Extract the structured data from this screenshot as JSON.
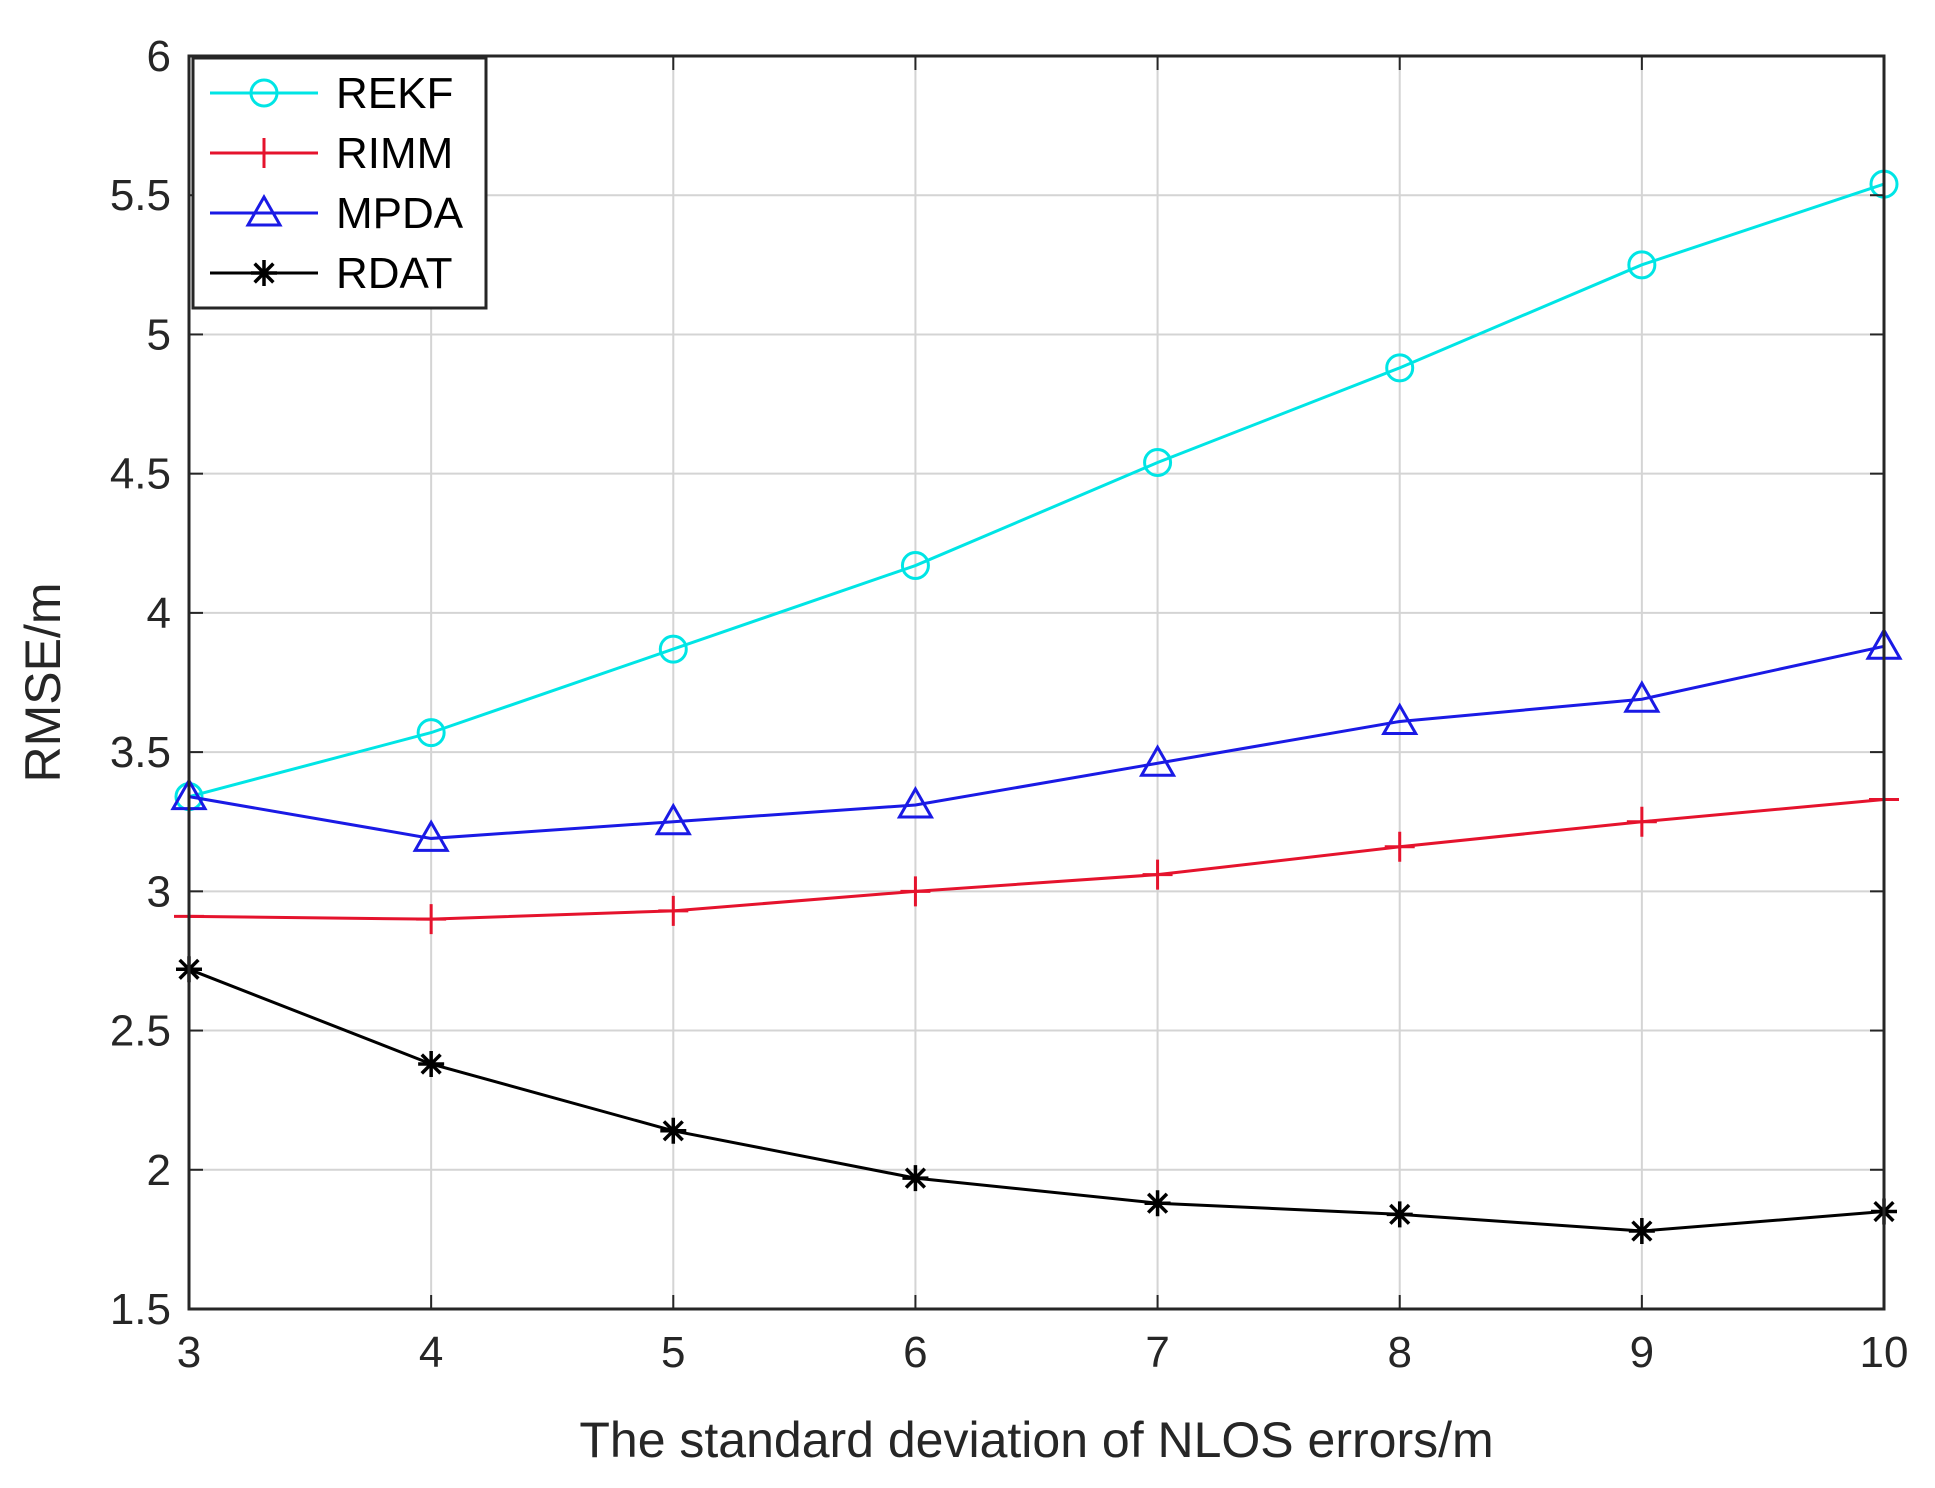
{
  "chart_data": {
    "type": "line",
    "title": "",
    "xlabel": "The standard deviation of NLOS errors/m",
    "ylabel": "RMSE/m",
    "xlim": [
      3,
      10
    ],
    "ylim": [
      1.5,
      6
    ],
    "grid": true,
    "legend_position": "top-left",
    "xticks": [
      3,
      4,
      5,
      6,
      7,
      8,
      9,
      10
    ],
    "yticks": [
      1.5,
      2,
      2.5,
      3,
      3.5,
      4,
      4.5,
      5,
      5.5,
      6
    ],
    "xtick_labels": [
      "3",
      "4",
      "5",
      "6",
      "7",
      "8",
      "9",
      "10"
    ],
    "ytick_labels": [
      "1.5",
      "2",
      "2.5",
      "3",
      "3.5",
      "4",
      "4.5",
      "5",
      "5.5",
      "6"
    ],
    "x": [
      3,
      4,
      5,
      6,
      7,
      8,
      9,
      10
    ],
    "series": [
      {
        "name": "REKF",
        "color": "#00e5e5",
        "marker": "circle",
        "values": [
          3.34,
          3.57,
          3.87,
          4.17,
          4.54,
          4.88,
          5.25,
          5.54
        ]
      },
      {
        "name": "RIMM",
        "color": "#e5132d",
        "marker": "plus",
        "values": [
          2.91,
          2.9,
          2.93,
          3.0,
          3.06,
          3.16,
          3.25,
          3.33
        ]
      },
      {
        "name": "MPDA",
        "color": "#1a1ae5",
        "marker": "triangle",
        "values": [
          3.34,
          3.19,
          3.25,
          3.31,
          3.46,
          3.61,
          3.69,
          3.88
        ]
      },
      {
        "name": "RDAT",
        "color": "#000000",
        "marker": "star",
        "values": [
          2.72,
          2.38,
          2.14,
          1.97,
          1.88,
          1.84,
          1.78,
          1.85
        ]
      }
    ]
  }
}
